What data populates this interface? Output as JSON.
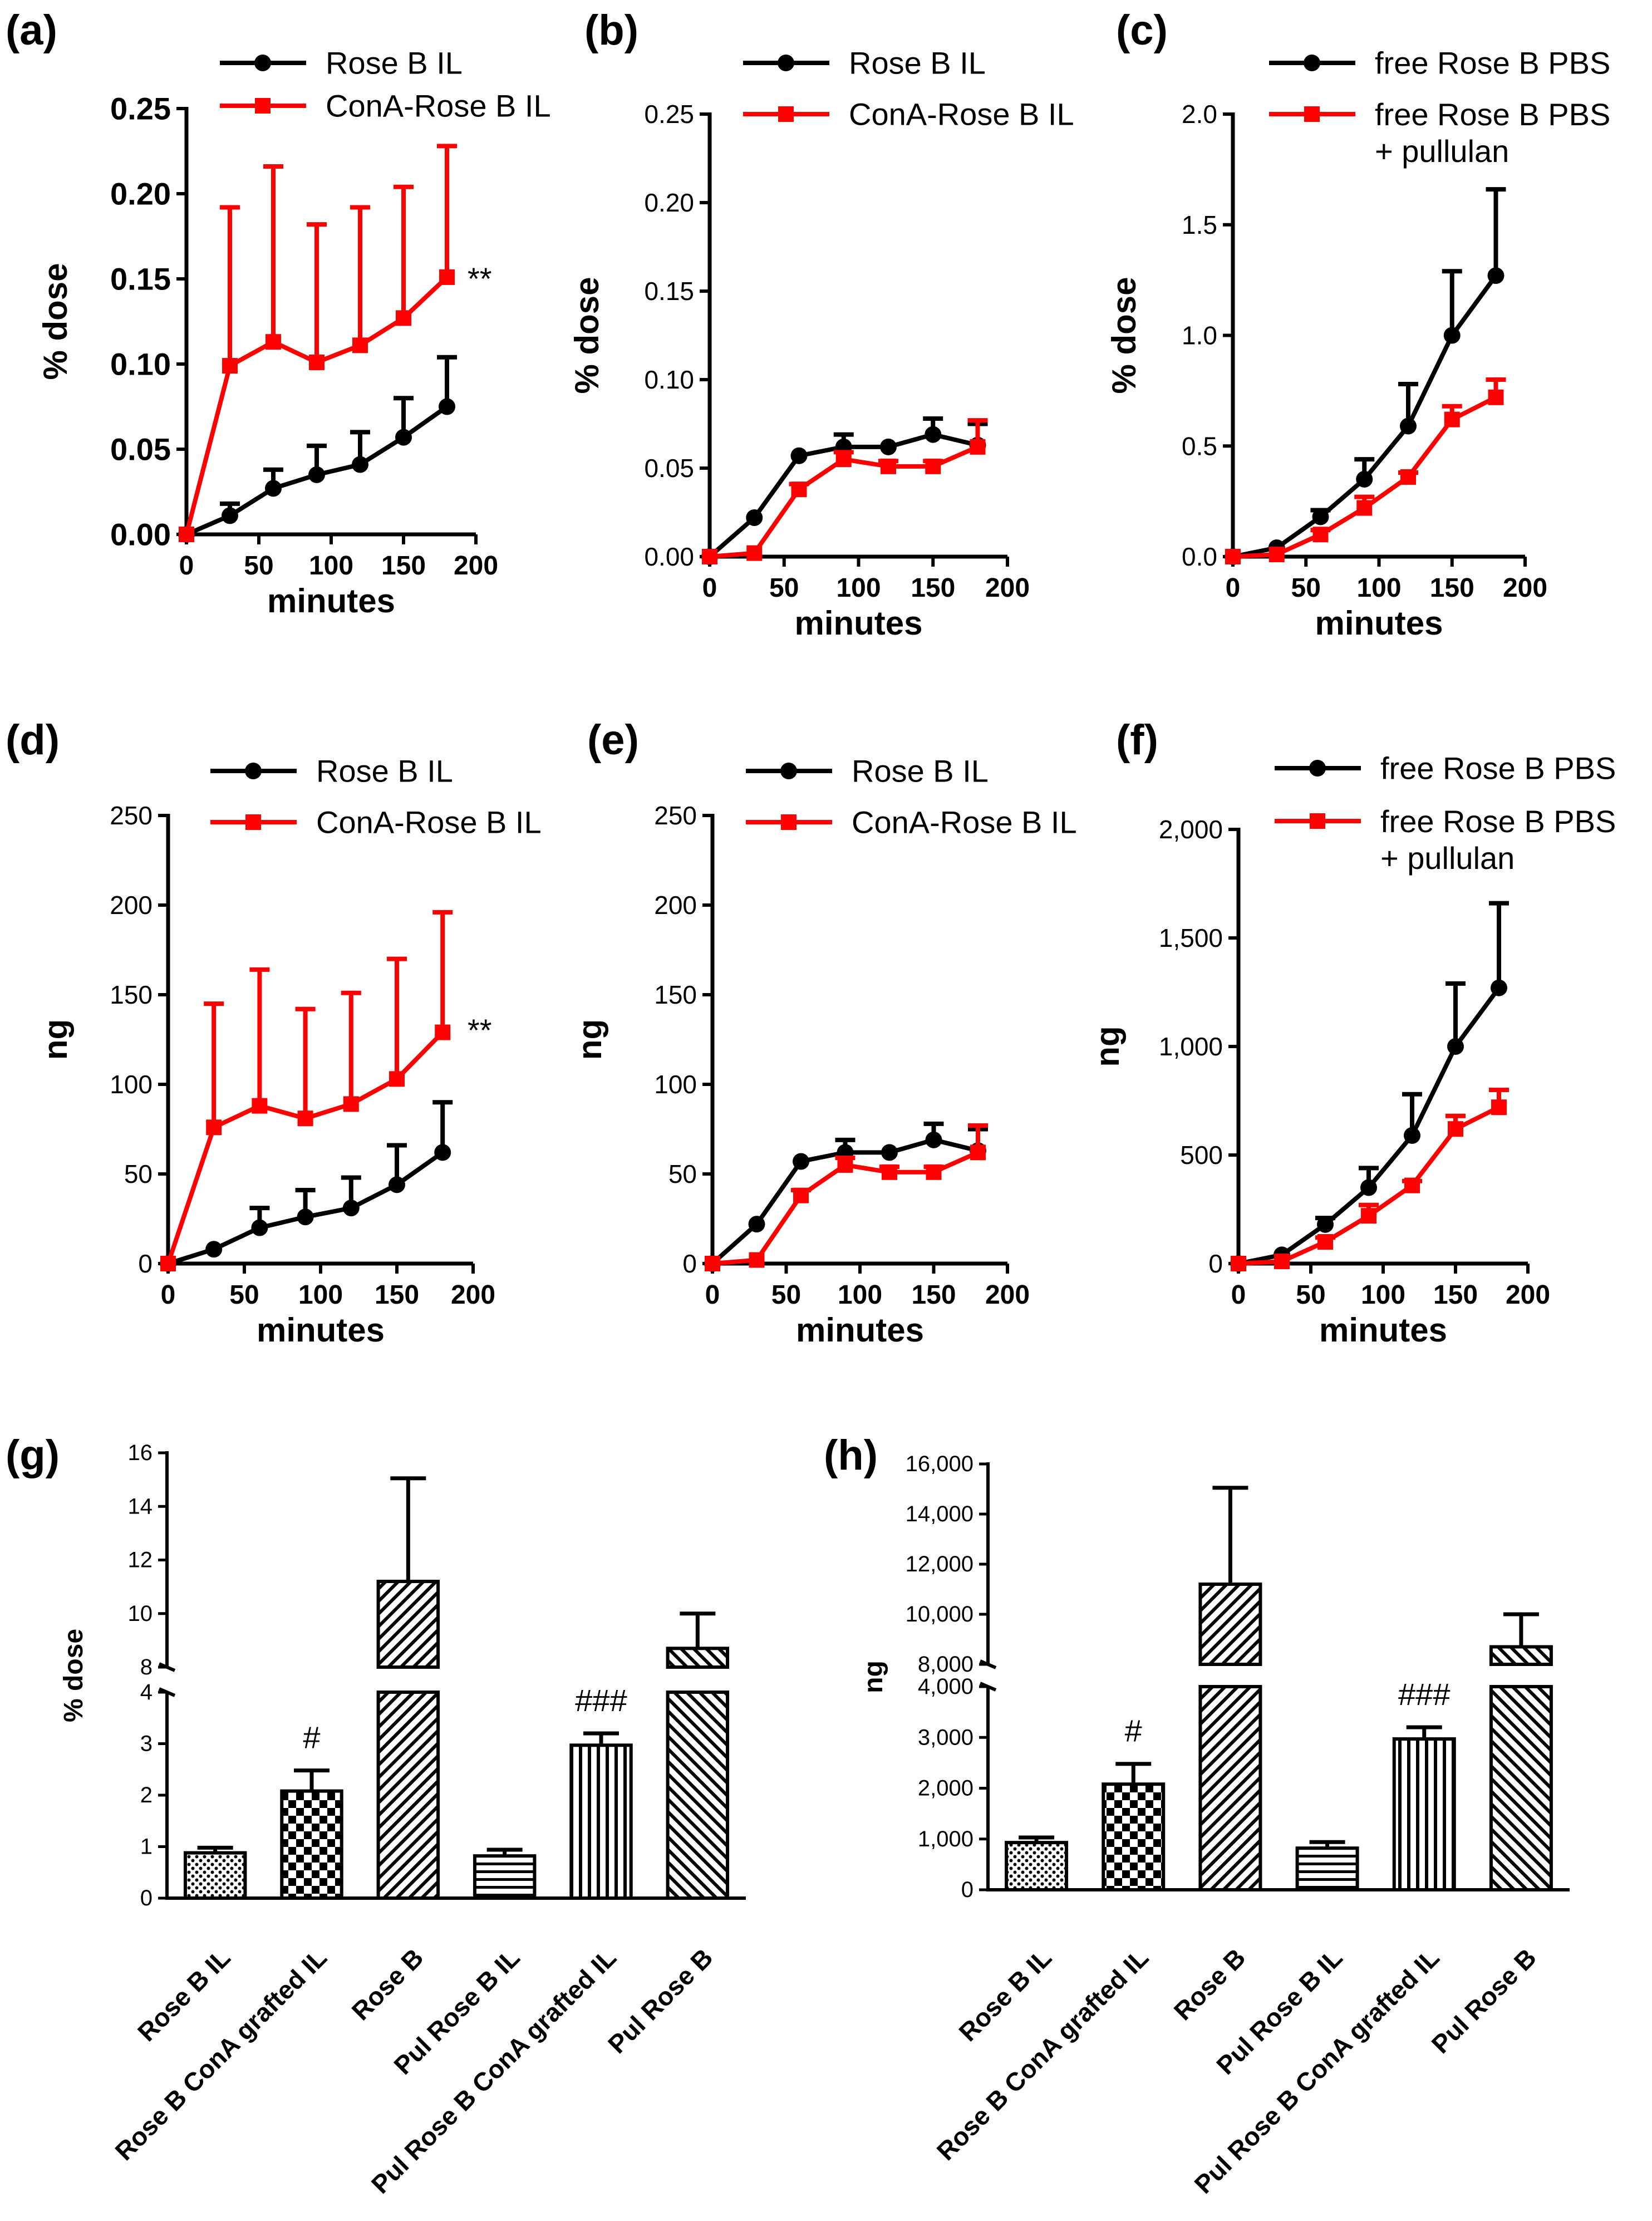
{
  "figure_title": "",
  "chart_data": [
    {
      "id": "a",
      "type": "line",
      "panel_label": "(a)",
      "xlabel": "minutes",
      "ylabel": "% dose",
      "xlim": [
        0,
        200
      ],
      "ylim": [
        0,
        0.25
      ],
      "xticks": [
        0,
        50,
        100,
        150,
        200
      ],
      "xtick_labels": [
        "0",
        "50",
        "100",
        "150",
        "200"
      ],
      "yticks": [
        0,
        0.05,
        0.1,
        0.15,
        0.2,
        0.25
      ],
      "ytick_labels": [
        "0.00",
        "0.05",
        "0.10",
        "0.15",
        "0.20",
        "0.25"
      ],
      "x": [
        0,
        30,
        60,
        90,
        120,
        150,
        180
      ],
      "series": [
        {
          "name": "Rose B IL",
          "color": "#000000",
          "marker": "circle",
          "values": [
            0,
            0.011,
            0.027,
            0.035,
            0.041,
            0.057,
            0.075
          ],
          "errors": [
            0,
            0.007,
            0.011,
            0.017,
            0.019,
            0.023,
            0.029
          ]
        },
        {
          "name": "ConA-Rose B IL",
          "color": "#ff0000",
          "marker": "square",
          "values": [
            0,
            0.099,
            0.113,
            0.101,
            0.111,
            0.127,
            0.151
          ],
          "errors": [
            0,
            0.093,
            0.103,
            0.081,
            0.081,
            0.077,
            0.077
          ]
        }
      ],
      "annotation": "**"
    },
    {
      "id": "b",
      "type": "line",
      "panel_label": "(b)",
      "xlabel": "minutes",
      "ylabel": "% dose",
      "xlim": [
        0,
        200
      ],
      "ylim": [
        0,
        0.25
      ],
      "xticks": [
        0,
        50,
        100,
        150,
        200
      ],
      "xtick_labels": [
        "0",
        "50",
        "100",
        "150",
        "200"
      ],
      "yticks": [
        0,
        0.05,
        0.1,
        0.15,
        0.2,
        0.25
      ],
      "ytick_labels": [
        "0.00",
        "0.05",
        "0.10",
        "0.15",
        "0.20",
        "0.25"
      ],
      "x": [
        0,
        30,
        60,
        90,
        120,
        150,
        180
      ],
      "series": [
        {
          "name": "Rose B IL",
          "color": "#000000",
          "marker": "circle",
          "values": [
            0,
            0.022,
            0.057,
            0.062,
            0.062,
            0.069,
            0.063
          ],
          "errors": [
            0,
            0,
            0,
            0.007,
            0,
            0.009,
            0.012
          ]
        },
        {
          "name": "ConA-Rose B IL",
          "color": "#ff0000",
          "marker": "square",
          "values": [
            0,
            0.002,
            0.038,
            0.055,
            0.051,
            0.051,
            0.062
          ],
          "errors": [
            0,
            0,
            0.003,
            0.004,
            0.003,
            0.003,
            0.015
          ]
        }
      ],
      "annotation": ""
    },
    {
      "id": "c",
      "type": "line",
      "panel_label": "(c)",
      "xlabel": "minutes",
      "ylabel": "% dose",
      "xlim": [
        0,
        200
      ],
      "ylim": [
        0,
        2.0
      ],
      "xticks": [
        0,
        50,
        100,
        150,
        200
      ],
      "xtick_labels": [
        "0",
        "50",
        "100",
        "150",
        "200"
      ],
      "yticks": [
        0,
        0.5,
        1.0,
        1.5,
        2.0
      ],
      "ytick_labels": [
        "0.0",
        "0.5",
        "1.0",
        "1.5",
        "2.0"
      ],
      "x": [
        0,
        30,
        60,
        90,
        120,
        150,
        180
      ],
      "series": [
        {
          "name": "free Rose B PBS",
          "color": "#000000",
          "marker": "circle",
          "values": [
            0,
            0.04,
            0.18,
            0.35,
            0.59,
            1.0,
            1.27
          ],
          "errors": [
            0,
            0,
            0.03,
            0.09,
            0.19,
            0.29,
            0.39
          ]
        },
        {
          "name": "free Rose B PBS + pullulan",
          "color": "#ff0000",
          "marker": "square",
          "values": [
            0,
            0.01,
            0.1,
            0.22,
            0.36,
            0.62,
            0.72
          ],
          "errors": [
            0,
            0,
            0.02,
            0.05,
            0.02,
            0.06,
            0.08
          ]
        }
      ],
      "annotation": ""
    },
    {
      "id": "d",
      "type": "line",
      "panel_label": "(d)",
      "xlabel": "minutes",
      "ylabel": "ng",
      "xlim": [
        0,
        200
      ],
      "ylim": [
        0,
        250
      ],
      "xticks": [
        0,
        50,
        100,
        150,
        200
      ],
      "xtick_labels": [
        "0",
        "50",
        "100",
        "150",
        "200"
      ],
      "yticks": [
        0,
        50,
        100,
        150,
        200,
        250
      ],
      "ytick_labels": [
        "0",
        "50",
        "100",
        "150",
        "200",
        "250"
      ],
      "x": [
        0,
        30,
        60,
        90,
        120,
        150,
        180
      ],
      "series": [
        {
          "name": "Rose B IL",
          "color": "#000000",
          "marker": "circle",
          "values": [
            0,
            8,
            20,
            26,
            31,
            44,
            62
          ],
          "errors": [
            0,
            0,
            11,
            15,
            17,
            22,
            28
          ]
        },
        {
          "name": "ConA-Rose B IL",
          "color": "#ff0000",
          "marker": "square",
          "values": [
            0,
            76,
            88,
            81,
            89,
            103,
            129
          ],
          "errors": [
            0,
            69,
            76,
            61,
            62,
            67,
            67
          ]
        }
      ],
      "annotation": "**"
    },
    {
      "id": "e",
      "type": "line",
      "panel_label": "(e)",
      "xlabel": "minutes",
      "ylabel": "ng",
      "xlim": [
        0,
        200
      ],
      "ylim": [
        0,
        250
      ],
      "xticks": [
        0,
        50,
        100,
        150,
        200
      ],
      "xtick_labels": [
        "0",
        "50",
        "100",
        "150",
        "200"
      ],
      "yticks": [
        0,
        50,
        100,
        150,
        200,
        250
      ],
      "ytick_labels": [
        "0",
        "50",
        "100",
        "150",
        "200",
        "250"
      ],
      "x": [
        0,
        30,
        60,
        90,
        120,
        150,
        180
      ],
      "series": [
        {
          "name": "Rose B IL",
          "color": "#000000",
          "marker": "circle",
          "values": [
            0,
            22,
            57,
            62,
            62,
            69,
            63
          ],
          "errors": [
            0,
            0,
            0,
            7,
            0,
            9,
            12
          ]
        },
        {
          "name": "ConA-Rose B IL",
          "color": "#ff0000",
          "marker": "square",
          "values": [
            0,
            2,
            38,
            55,
            51,
            51,
            62
          ],
          "errors": [
            0,
            0,
            3,
            4,
            3,
            3,
            15
          ]
        }
      ],
      "annotation": ""
    },
    {
      "id": "f",
      "type": "line",
      "panel_label": "(f)",
      "xlabel": "minutes",
      "ylabel": "ng",
      "xlim": [
        0,
        200
      ],
      "ylim": [
        0,
        2000
      ],
      "xticks": [
        0,
        50,
        100,
        150,
        200
      ],
      "xtick_labels": [
        "0",
        "50",
        "100",
        "150",
        "200"
      ],
      "yticks": [
        0,
        500,
        1000,
        1500,
        2000
      ],
      "ytick_labels": [
        "0",
        "500",
        "1,000",
        "1,500",
        "2,000"
      ],
      "x": [
        0,
        30,
        60,
        90,
        120,
        150,
        180
      ],
      "series": [
        {
          "name": "free Rose B PBS",
          "color": "#000000",
          "marker": "circle",
          "values": [
            0,
            40,
            180,
            350,
            590,
            1000,
            1270
          ],
          "errors": [
            0,
            0,
            30,
            90,
            190,
            290,
            390
          ]
        },
        {
          "name": "free Rose B PBS + pullulan",
          "color": "#ff0000",
          "marker": "square",
          "values": [
            0,
            10,
            100,
            220,
            360,
            620,
            720
          ],
          "errors": [
            0,
            0,
            20,
            50,
            20,
            60,
            80
          ]
        }
      ],
      "annotation": ""
    },
    {
      "id": "g",
      "type": "bar",
      "panel_label": "(g)",
      "ylabel": "% dose",
      "categories": [
        "Rose B IL",
        "Rose B ConA grafted IL",
        "Rose B",
        "Pul Rose B IL",
        "Pul Rose B ConA grafted IL",
        "Pul Rose B"
      ],
      "values": [
        0.88,
        2.08,
        11.2,
        0.82,
        2.97,
        8.7
      ],
      "errors": [
        0.1,
        0.4,
        3.85,
        0.12,
        0.23,
        1.3
      ],
      "patterns": [
        "dots",
        "checker",
        "diag-right",
        "hlines",
        "vlines",
        "diag-left"
      ],
      "annotations": [
        "",
        "#",
        "",
        "",
        "###",
        ""
      ],
      "ylim_lower": [
        0,
        4
      ],
      "ylim_upper": [
        8,
        16
      ],
      "yticks_lower": [
        0,
        1,
        2,
        3,
        4
      ],
      "ytick_labels_lower": [
        "0",
        "1",
        "2",
        "3",
        "4"
      ],
      "yticks_upper": [
        8,
        10,
        12,
        14,
        16
      ],
      "ytick_labels_upper": [
        "8",
        "10",
        "12",
        "14",
        "16"
      ]
    },
    {
      "id": "h",
      "type": "bar",
      "panel_label": "(h)",
      "ylabel": "ng",
      "categories": [
        "Rose B IL",
        "Rose B ConA grafted IL",
        "Rose B",
        "Pul Rose B IL",
        "Pul Rose B ConA grafted IL",
        "Pul Rose B"
      ],
      "values": [
        930,
        2080,
        11200,
        820,
        2970,
        8700
      ],
      "errors": [
        100,
        400,
        3850,
        120,
        230,
        1300
      ],
      "patterns": [
        "dots",
        "checker",
        "diag-right",
        "hlines",
        "vlines",
        "diag-left"
      ],
      "annotations": [
        "",
        "#",
        "",
        "",
        "###",
        ""
      ],
      "ylim_lower": [
        0,
        4000
      ],
      "ylim_upper": [
        8000,
        16000
      ],
      "yticks_lower": [
        0,
        1000,
        2000,
        3000,
        4000
      ],
      "ytick_labels_lower": [
        "0",
        "1,000",
        "2,000",
        "3,000",
        "4,000"
      ],
      "yticks_upper": [
        8000,
        10000,
        12000,
        14000,
        16000
      ],
      "ytick_labels_upper": [
        "8,000",
        "10,000",
        "12,000",
        "14,000",
        "16,000"
      ]
    }
  ]
}
